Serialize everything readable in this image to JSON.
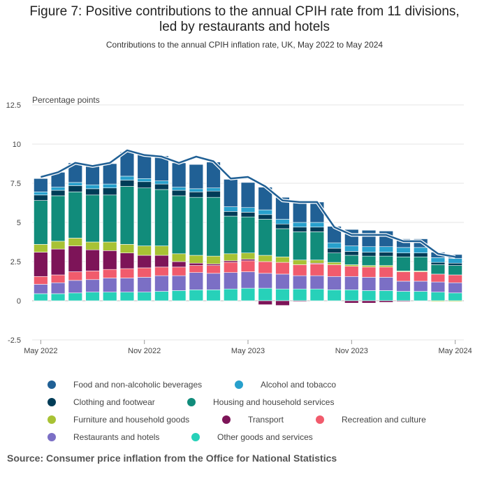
{
  "title_line1": "Figure 7: Positive contributions to the annual CPIH rate from 11 divisions,",
  "title_line2": "led by restaurants and hotels",
  "subtitle": "Contributions to the annual CPIH inflation rate, UK, May 2022 to May 2024",
  "source": "Source: Consumer price inflation from the Office for National Statistics",
  "chart_data": {
    "type": "bar",
    "stacked": true,
    "ylabel": "Percentage points",
    "ylim": [
      -2.5,
      12.5
    ],
    "yticks": [
      -2.5,
      0,
      2.5,
      5,
      7.5,
      10,
      12.5
    ],
    "ytick_labels": [
      "-2.5",
      "0",
      "2.5",
      "5",
      "7.5",
      "10",
      "12.5"
    ],
    "xtick_labels": [
      {
        "index": 0,
        "label": "May 2022"
      },
      {
        "index": 6,
        "label": "Nov 2022"
      },
      {
        "index": 12,
        "label": "May 2023"
      },
      {
        "index": 18,
        "label": "Nov 2023"
      },
      {
        "index": 24,
        "label": "May 2024"
      }
    ],
    "categories": [
      "May 2022",
      "Jun 2022",
      "Jul 2022",
      "Aug 2022",
      "Sep 2022",
      "Oct 2022",
      "Nov 2022",
      "Dec 2022",
      "Jan 2023",
      "Feb 2023",
      "Mar 2023",
      "Apr 2023",
      "May 2023",
      "Jun 2023",
      "Jul 2023",
      "Aug 2023",
      "Sep 2023",
      "Oct 2023",
      "Nov 2023",
      "Dec 2023",
      "Jan 2024",
      "Feb 2024",
      "Mar 2024",
      "Apr 2024",
      "May 2024"
    ],
    "series": [
      {
        "name": "Other goods and services",
        "color": "#27d1b9",
        "values": [
          0.45,
          0.45,
          0.5,
          0.55,
          0.55,
          0.55,
          0.55,
          0.6,
          0.65,
          0.7,
          0.7,
          0.75,
          0.8,
          0.8,
          0.75,
          0.75,
          0.75,
          0.7,
          0.7,
          0.65,
          0.65,
          0.6,
          0.6,
          0.55,
          0.5
        ]
      },
      {
        "name": "Restaurants and hotels",
        "color": "#7b6fc5",
        "values": [
          0.6,
          0.7,
          0.8,
          0.8,
          0.9,
          0.9,
          0.95,
          1.0,
          0.95,
          1.1,
          1.05,
          1.05,
          1.05,
          0.95,
          0.95,
          0.85,
          0.85,
          0.85,
          0.85,
          0.85,
          0.85,
          0.65,
          0.65,
          0.65,
          0.65
        ]
      },
      {
        "name": "Recreation and culture",
        "color": "#f15b6c",
        "values": [
          0.5,
          0.5,
          0.55,
          0.55,
          0.55,
          0.6,
          0.6,
          0.55,
          0.55,
          0.45,
          0.5,
          0.65,
          0.7,
          0.75,
          0.75,
          0.7,
          0.75,
          0.75,
          0.65,
          0.65,
          0.65,
          0.6,
          0.6,
          0.5,
          0.5
        ]
      },
      {
        "name": "Transport",
        "color": "#7d1458",
        "values": [
          1.55,
          1.65,
          1.65,
          1.35,
          1.2,
          1.0,
          0.8,
          0.75,
          0.35,
          0.15,
          0.1,
          0.1,
          0.1,
          -0.25,
          -0.3,
          -0.05,
          0.05,
          0.0,
          -0.15,
          -0.15,
          -0.1,
          -0.05,
          0.0,
          0.0,
          0.0
        ]
      },
      {
        "name": "Furniture and household goods",
        "color": "#a8c234",
        "values": [
          0.5,
          0.5,
          0.5,
          0.5,
          0.55,
          0.55,
          0.6,
          0.6,
          0.5,
          0.5,
          0.5,
          0.45,
          0.4,
          0.4,
          0.35,
          0.3,
          0.2,
          0.15,
          0.1,
          0.1,
          0.1,
          0.05,
          0.05,
          -0.05,
          -0.05
        ]
      },
      {
        "name": "Housing and household services",
        "color": "#118c7b",
        "values": [
          2.8,
          2.9,
          2.95,
          3.0,
          3.0,
          3.7,
          3.7,
          3.6,
          3.7,
          3.7,
          3.75,
          2.4,
          2.3,
          2.3,
          1.8,
          1.8,
          1.8,
          0.6,
          0.6,
          0.6,
          0.6,
          0.9,
          0.9,
          0.6,
          0.6
        ]
      },
      {
        "name": "Clothing and footwear",
        "color": "#003c57",
        "values": [
          0.35,
          0.35,
          0.4,
          0.4,
          0.45,
          0.4,
          0.4,
          0.35,
          0.35,
          0.35,
          0.4,
          0.3,
          0.3,
          0.3,
          0.3,
          0.3,
          0.3,
          0.3,
          0.25,
          0.25,
          0.25,
          0.25,
          0.25,
          0.15,
          0.15
        ]
      },
      {
        "name": "Alcohol and tobacco",
        "color": "#27a0cc",
        "values": [
          0.2,
          0.2,
          0.2,
          0.25,
          0.25,
          0.25,
          0.2,
          0.2,
          0.2,
          0.2,
          0.2,
          0.3,
          0.3,
          0.3,
          0.3,
          0.3,
          0.3,
          0.35,
          0.35,
          0.35,
          0.35,
          0.35,
          0.35,
          0.3,
          0.3
        ]
      },
      {
        "name": "Food and non-alcoholic beverages",
        "color": "#206095",
        "values": [
          0.85,
          0.95,
          1.25,
          1.2,
          1.3,
          1.55,
          1.55,
          1.6,
          1.55,
          1.55,
          1.65,
          1.75,
          1.6,
          1.45,
          1.4,
          1.3,
          1.3,
          1.05,
          1.05,
          1.05,
          1.0,
          0.55,
          0.55,
          0.35,
          0.25
        ]
      }
    ],
    "line": {
      "name": "CPIH",
      "color": "#206095",
      "values": [
        7.9,
        8.2,
        8.8,
        8.6,
        8.8,
        9.6,
        9.3,
        9.2,
        8.8,
        9.2,
        8.9,
        7.8,
        7.9,
        7.3,
        6.4,
        6.3,
        6.3,
        4.7,
        4.2,
        4.2,
        4.2,
        3.8,
        3.8,
        3.0,
        2.8
      ]
    },
    "legend_order": [
      "Food and non-alcoholic beverages",
      "Alcohol and tobacco",
      "Clothing and footwear",
      "Housing and household services",
      "Furniture and household goods",
      "Transport",
      "Recreation and culture",
      "Restaurants and hotels",
      "Other goods and services"
    ]
  }
}
